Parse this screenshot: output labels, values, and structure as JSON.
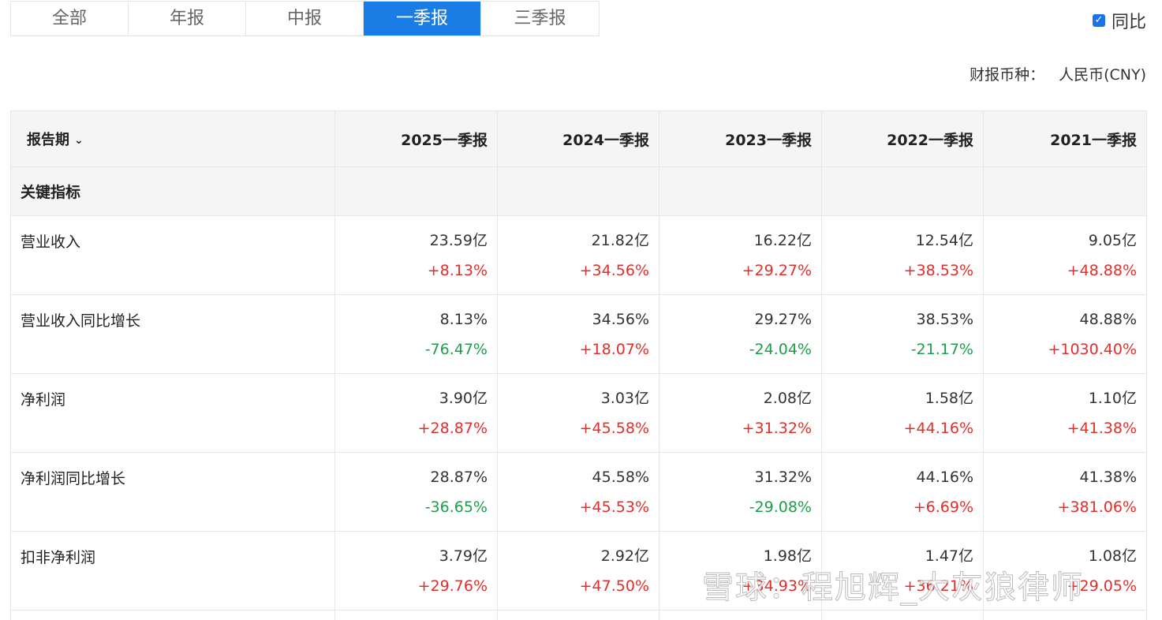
{
  "tabs": [
    {
      "label": "全部",
      "active": false
    },
    {
      "label": "年报",
      "active": false
    },
    {
      "label": "中报",
      "active": false
    },
    {
      "label": "一季报",
      "active": true
    },
    {
      "label": "三季报",
      "active": false
    }
  ],
  "yoy": {
    "label": "同比",
    "checked": true
  },
  "currency": {
    "label": "财报币种：",
    "value": "人民币(CNY)"
  },
  "table": {
    "period_header": "报告期",
    "columns": [
      "2025一季报",
      "2024一季报",
      "2023一季报",
      "2022一季报",
      "2021一季报"
    ],
    "section": "关键指标",
    "rows": [
      {
        "name": "营业收入",
        "cells": [
          {
            "value": "23.59亿",
            "change": "+8.13%",
            "dir": "up"
          },
          {
            "value": "21.82亿",
            "change": "+34.56%",
            "dir": "up"
          },
          {
            "value": "16.22亿",
            "change": "+29.27%",
            "dir": "up"
          },
          {
            "value": "12.54亿",
            "change": "+38.53%",
            "dir": "up"
          },
          {
            "value": "9.05亿",
            "change": "+48.88%",
            "dir": "up"
          }
        ]
      },
      {
        "name": "营业收入同比增长",
        "cells": [
          {
            "value": "8.13%",
            "change": "-76.47%",
            "dir": "down"
          },
          {
            "value": "34.56%",
            "change": "+18.07%",
            "dir": "up"
          },
          {
            "value": "29.27%",
            "change": "-24.04%",
            "dir": "down"
          },
          {
            "value": "38.53%",
            "change": "-21.17%",
            "dir": "down"
          },
          {
            "value": "48.88%",
            "change": "+1030.40%",
            "dir": "up"
          }
        ]
      },
      {
        "name": "净利润",
        "cells": [
          {
            "value": "3.90亿",
            "change": "+28.87%",
            "dir": "up"
          },
          {
            "value": "3.03亿",
            "change": "+45.58%",
            "dir": "up"
          },
          {
            "value": "2.08亿",
            "change": "+31.32%",
            "dir": "up"
          },
          {
            "value": "1.58亿",
            "change": "+44.16%",
            "dir": "up"
          },
          {
            "value": "1.10亿",
            "change": "+41.38%",
            "dir": "up"
          }
        ]
      },
      {
        "name": "净利润同比增长",
        "cells": [
          {
            "value": "28.87%",
            "change": "-36.65%",
            "dir": "down"
          },
          {
            "value": "45.58%",
            "change": "+45.53%",
            "dir": "up"
          },
          {
            "value": "31.32%",
            "change": "-29.08%",
            "dir": "down"
          },
          {
            "value": "44.16%",
            "change": "+6.69%",
            "dir": "up"
          },
          {
            "value": "41.38%",
            "change": "+381.06%",
            "dir": "up"
          }
        ]
      },
      {
        "name": "扣非净利润",
        "cells": [
          {
            "value": "3.79亿",
            "change": "+29.76%",
            "dir": "up"
          },
          {
            "value": "2.92亿",
            "change": "+47.50%",
            "dir": "up"
          },
          {
            "value": "1.98亿",
            "change": "+34.93%",
            "dir": "up"
          },
          {
            "value": "1.47亿",
            "change": "+36.21%",
            "dir": "up"
          },
          {
            "value": "1.08亿",
            "change": "+29.05%",
            "dir": "up"
          }
        ]
      }
    ]
  },
  "watermark": "雪球：程旭辉_大灰狼律师",
  "colors": {
    "accent": "#1a7de6",
    "up": "#e0302b",
    "down": "#1e9e4a"
  }
}
